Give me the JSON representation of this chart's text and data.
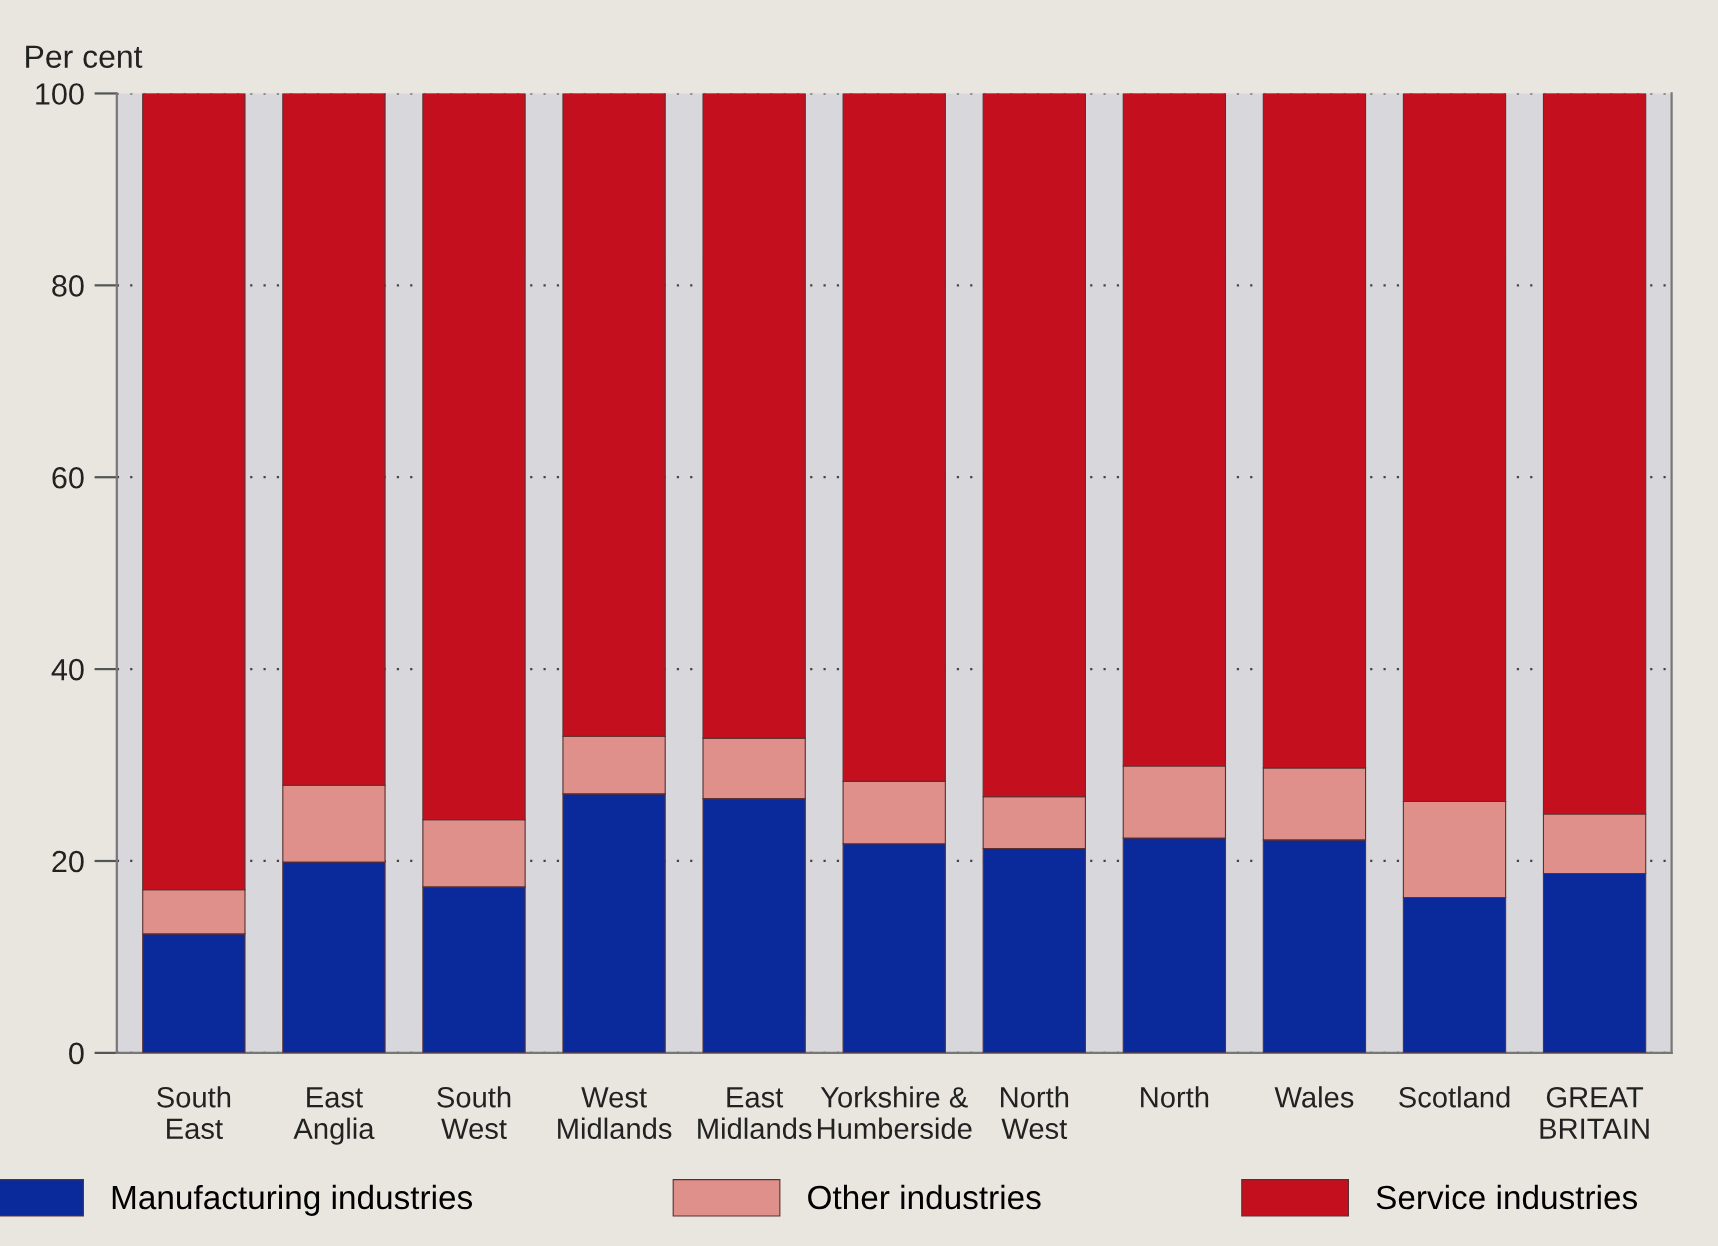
{
  "chart_data": {
    "type": "bar",
    "stacked": true,
    "ylabel": "Per cent",
    "categories": [
      "South\nEast",
      "East\nAnglia",
      "South\nWest",
      "West\nMidlands",
      "East\nMidlands",
      "Yorkshire &\nHumberside",
      "North\nWest",
      "North",
      "Wales",
      "Scotland",
      "GREAT\nBRITAIN"
    ],
    "series": [
      {
        "name": "Manufacturing industries",
        "color": "#0a2a9c",
        "values": [
          12.4,
          19.9,
          17.3,
          27.0,
          26.5,
          21.8,
          21.3,
          22.4,
          22.2,
          16.2,
          18.7
        ]
      },
      {
        "name": "Other industries",
        "color": "#e0908a",
        "values": [
          4.6,
          8.0,
          7.0,
          6.0,
          6.3,
          6.5,
          5.4,
          7.5,
          7.5,
          10.0,
          6.2
        ]
      },
      {
        "name": "Service industries",
        "color": "#c4101e",
        "values": [
          83.0,
          72.1,
          75.7,
          67.0,
          67.2,
          71.7,
          73.3,
          70.1,
          70.3,
          73.8,
          75.1
        ]
      }
    ],
    "ylim": [
      0,
      100
    ],
    "yticks": [
      0,
      20,
      40,
      60,
      80,
      100
    ],
    "grid": "y",
    "legend": "bottom"
  }
}
